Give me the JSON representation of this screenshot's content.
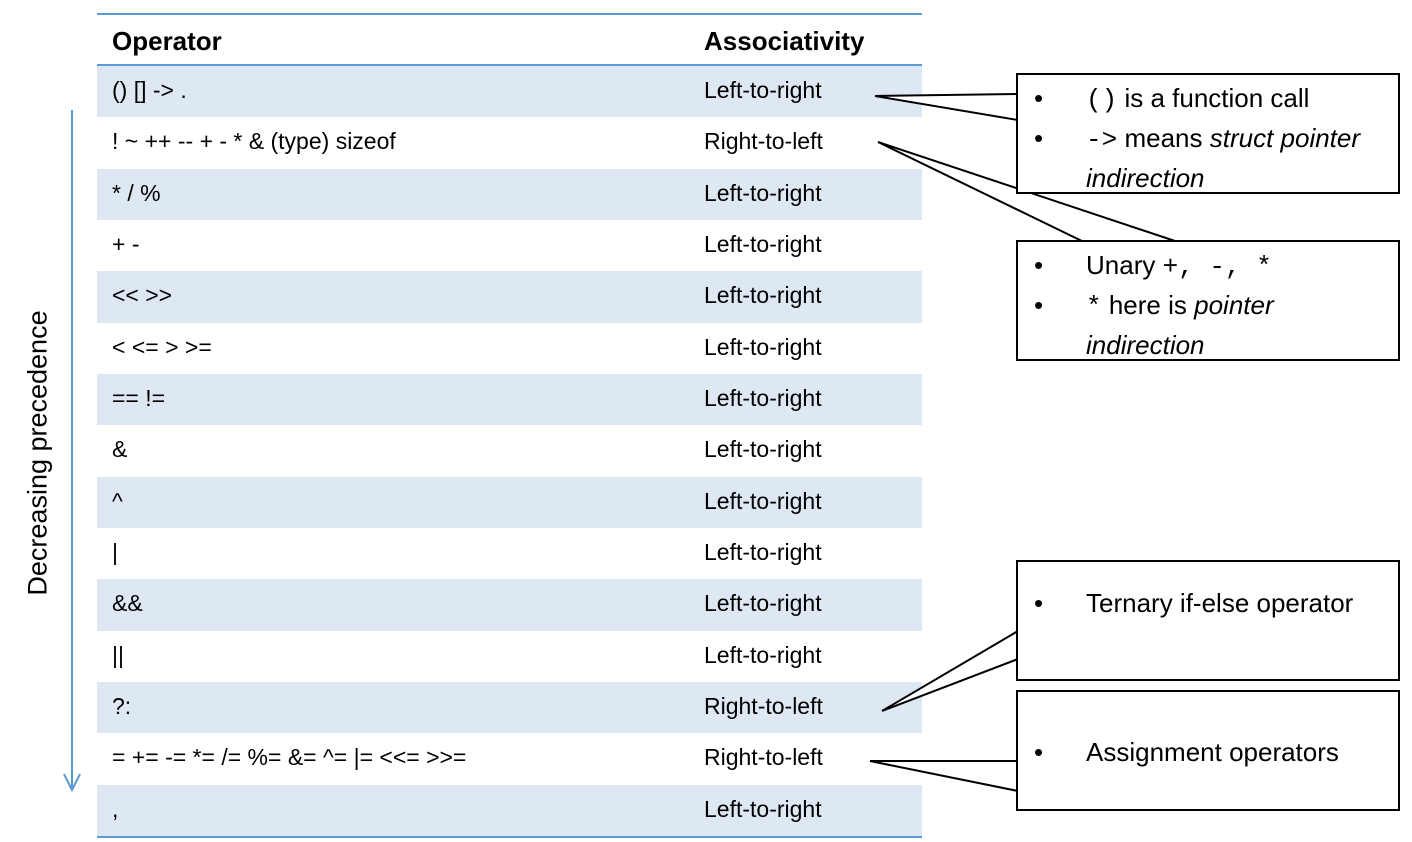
{
  "table": {
    "headers": {
      "operator": "Operator",
      "associativity": "Associativity"
    },
    "rows": [
      {
        "operator": "() [] -> .",
        "associativity": "Left-to-right"
      },
      {
        "operator": "! ~ ++ -- + - * & (type) sizeof",
        "associativity": "Right-to-left"
      },
      {
        "operator": "* / %",
        "associativity": "Left-to-right"
      },
      {
        "operator": "+ -",
        "associativity": "Left-to-right"
      },
      {
        "operator": "<< >>",
        "associativity": "Left-to-right"
      },
      {
        "operator": "< <= > >=",
        "associativity": "Left-to-right"
      },
      {
        "operator": "== !=",
        "associativity": "Left-to-right"
      },
      {
        "operator": "&",
        "associativity": "Left-to-right"
      },
      {
        "operator": "^",
        "associativity": "Left-to-right"
      },
      {
        "operator": "|",
        "associativity": "Left-to-right"
      },
      {
        "operator": "&&",
        "associativity": "Left-to-right"
      },
      {
        "operator": "||",
        "associativity": "Left-to-right"
      },
      {
        "operator": "?:",
        "associativity": "Right-to-left"
      },
      {
        "operator": "= += -= *= /= %= &= ^= |= <<= >>=",
        "associativity": "Right-to-left"
      },
      {
        "operator": ",",
        "associativity": "Left-to-right"
      }
    ]
  },
  "precedence_label": "Decreasing precedence",
  "colors": {
    "accent": "#5b9bd5",
    "row_shade": "#dde8f3"
  },
  "notes": {
    "function_call": {
      "line1_code": "()",
      "line1_text": "is a function call",
      "line2_code": "->",
      "line2_text": "means",
      "line2_italic": "struct pointer indirection"
    },
    "unary": {
      "line1_text": "Unary",
      "line1_code": "+, -, *",
      "line2_code": "*",
      "line2_text": "here is",
      "line2_italic": "pointer indirection"
    },
    "ternary": {
      "text": "Ternary if-else operator"
    },
    "assignment": {
      "text": "Assignment operators"
    }
  }
}
